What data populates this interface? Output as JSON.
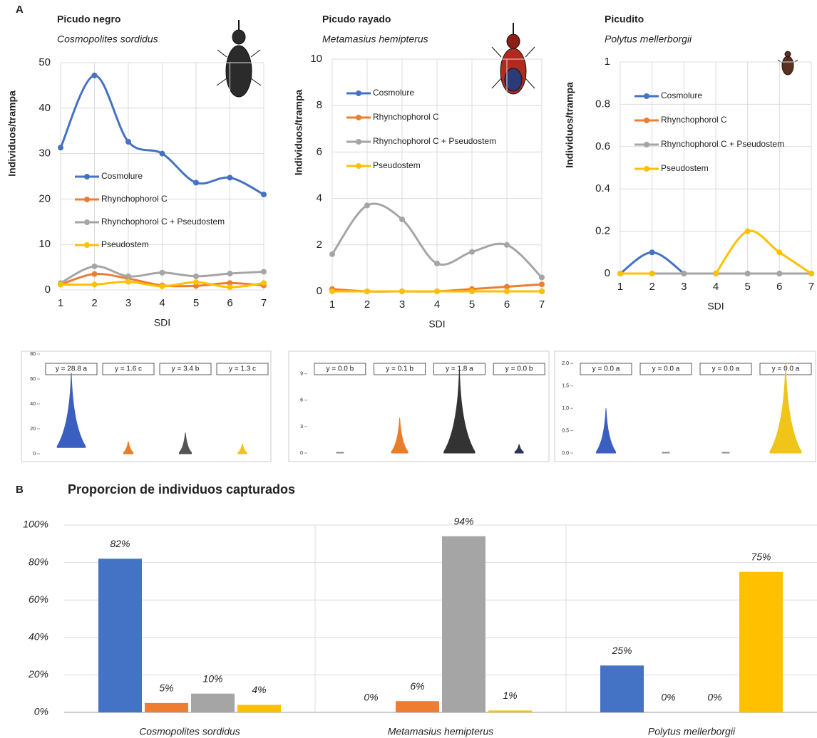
{
  "labels": [
    "A",
    "B"
  ],
  "chart_data": [
    {
      "type": "line",
      "title": "Picudo negro",
      "subtitle": "Cosmopolites sordidus",
      "ylabel": "Individuos/trampa",
      "xlabel": "SDI",
      "x": [
        1,
        2,
        3,
        4,
        5,
        6,
        7
      ],
      "xlim": [
        1,
        7
      ],
      "xticks": [
        1,
        2,
        3,
        4,
        5,
        6,
        7
      ],
      "ylim": [
        0,
        50
      ],
      "yticks": [
        0,
        10,
        20,
        30,
        40,
        50
      ],
      "grid": true,
      "legend": "center left",
      "series": [
        {
          "name": "Cosmolure",
          "color": "#4472c4",
          "values": [
            31.3,
            47.2,
            32.6,
            30,
            23.6,
            24.7,
            21
          ]
        },
        {
          "name": "Rhynchophorol C",
          "color": "#ed7d31",
          "values": [
            1.2,
            3.5,
            2.5,
            1,
            0.9,
            1.5,
            1
          ]
        },
        {
          "name": "Rhynchophorol C + Pseudostem",
          "color": "#a5a5a5",
          "values": [
            1.5,
            5.2,
            3,
            3.8,
            3,
            3.6,
            4
          ]
        },
        {
          "name": "Pseudostem",
          "color": "#ffc000",
          "values": [
            1.2,
            1.2,
            1.8,
            0.8,
            1.7,
            0.6,
            1.5
          ]
        }
      ]
    },
    {
      "type": "line",
      "title": "Picudo rayado",
      "subtitle": "Metamasius hemipterus",
      "ylabel": "Individuos/trampa",
      "xlabel": "SDI",
      "x": [
        1,
        2,
        3,
        4,
        5,
        6,
        7
      ],
      "xlim": [
        1,
        7
      ],
      "xticks": [
        1,
        2,
        3,
        4,
        5,
        6,
        7
      ],
      "ylim": [
        0,
        10
      ],
      "yticks": [
        0,
        2,
        4,
        6,
        8,
        10
      ],
      "grid": true,
      "legend": "upper left",
      "series": [
        {
          "name": "Cosmolure",
          "color": "#4472c4",
          "values": [
            0.05,
            0,
            0,
            0,
            0,
            0,
            0
          ]
        },
        {
          "name": "Rhynchophorol C",
          "color": "#ed7d31",
          "values": [
            0.1,
            0,
            0,
            0,
            0.1,
            0.2,
            0.3
          ]
        },
        {
          "name": "Rhynchophorol C + Pseudostem",
          "color": "#a5a5a5",
          "values": [
            1.6,
            3.7,
            3.1,
            1.2,
            1.7,
            2,
            0.6
          ]
        },
        {
          "name": "Pseudostem",
          "color": "#ffc000",
          "values": [
            0,
            0,
            0,
            0,
            0,
            0,
            0
          ]
        }
      ]
    },
    {
      "type": "line",
      "title": "Picudito",
      "subtitle": "Polytus mellerborgii",
      "ylabel": "Individuos/trampa",
      "xlabel": "SDI",
      "x": [
        1,
        2,
        3,
        4,
        5,
        6,
        7
      ],
      "xlim": [
        1,
        7
      ],
      "xticks": [
        1,
        2,
        3,
        4,
        5,
        6,
        7
      ],
      "ylim": [
        0,
        1
      ],
      "yticks": [
        0,
        0.2,
        0.4,
        0.6,
        0.8,
        1
      ],
      "grid": true,
      "legend": "upper left",
      "series": [
        {
          "name": "Cosmolure",
          "color": "#4472c4",
          "values": [
            0,
            0.1,
            0,
            null,
            null,
            null,
            null
          ]
        },
        {
          "name": "Rhynchophorol C",
          "color": "#ed7d31",
          "values": [
            0,
            0,
            0,
            0,
            0,
            0,
            0
          ]
        },
        {
          "name": "Rhynchophorol C + Pseudostem",
          "color": "#a5a5a5",
          "values": [
            0,
            0,
            0,
            0,
            0,
            0,
            0
          ]
        },
        {
          "name": "Pseudostem",
          "color": "#ffc000",
          "values": [
            0,
            0,
            null,
            0,
            0.2,
            0.1,
            0
          ]
        }
      ]
    },
    {
      "type": "violin",
      "ylim": [
        0,
        80
      ],
      "yticks": [
        0,
        20,
        40,
        60,
        80
      ],
      "violins": [
        {
          "label": "y = 28.8 a",
          "color": "#3a5fc0",
          "range": [
            5,
            65
          ]
        },
        {
          "label": "y = 1.6 c",
          "color": "#e87d2a",
          "range": [
            0,
            10
          ]
        },
        {
          "label": "y = 3.4 b",
          "color": "#555555",
          "range": [
            0,
            17
          ]
        },
        {
          "label": "y = 1.3 c",
          "color": "#f0c419",
          "range": [
            0,
            8
          ]
        }
      ]
    },
    {
      "type": "violin",
      "ylim": [
        0,
        11
      ],
      "yticks": [
        0,
        3,
        6,
        9
      ],
      "violins": [
        {
          "label": "y = 0.0 b",
          "color": "#888888",
          "range": [
            0,
            0
          ]
        },
        {
          "label": "y = 0.1 b",
          "color": "#e87d2a",
          "range": [
            0,
            4
          ]
        },
        {
          "label": "y = 1.8 a",
          "color": "#333333",
          "range": [
            0,
            9.5
          ]
        },
        {
          "label": "y = 0.0 b",
          "color": "#2a3560",
          "range": [
            0,
            1
          ]
        }
      ]
    },
    {
      "type": "violin",
      "ylim": [
        0,
        2.1
      ],
      "yticks": [
        {
          "value": 0,
          "label": "0.0"
        },
        {
          "value": 0.5,
          "label": "0.5"
        },
        {
          "value": 1,
          "label": "1.0"
        },
        {
          "value": 1.5,
          "label": "1.5"
        },
        {
          "value": 2,
          "label": "2.0"
        }
      ],
      "violins": [
        {
          "label": "y = 0.0 a",
          "color": "#3a5fc0",
          "range": [
            0,
            1
          ]
        },
        {
          "label": "y = 0.0 a",
          "color": "#888888",
          "range": [
            0,
            0
          ]
        },
        {
          "label": "y = 0.0 a",
          "color": "#888888",
          "range": [
            0,
            0
          ]
        },
        {
          "label": "y = 0.0 a",
          "color": "#f0c419",
          "range": [
            0,
            2
          ]
        }
      ]
    },
    {
      "type": "bar",
      "title": "Proporcion de individuos capturados",
      "categories": [
        "Cosmopolites sordidus",
        "Metamasius hemipterus",
        "Polytus mellerborgii"
      ],
      "ylim": [
        0,
        100
      ],
      "grid": true,
      "yticks": [
        {
          "value": 0,
          "label": "0%"
        },
        {
          "value": 20,
          "label": "20%"
        },
        {
          "value": 40,
          "label": "40%"
        },
        {
          "value": 60,
          "label": "60%"
        },
        {
          "value": 80,
          "label": "80%"
        },
        {
          "value": 100,
          "label": "100%"
        }
      ],
      "series": [
        {
          "color": "#4472c4",
          "values": [
            82,
            0,
            25
          ],
          "value_labels": [
            "82%",
            "0%",
            "25%"
          ]
        },
        {
          "color": "#ed7d31",
          "values": [
            5,
            6,
            0
          ],
          "value_labels": [
            "5%",
            "6%",
            "0%"
          ]
        },
        {
          "color": "#a5a5a5",
          "values": [
            10,
            94,
            0
          ],
          "value_labels": [
            "10%",
            "94%",
            "0%"
          ]
        },
        {
          "color": "#ffc000",
          "values": [
            4,
            1,
            75
          ],
          "value_labels": [
            "4%",
            "1%",
            "75%"
          ]
        }
      ]
    }
  ]
}
